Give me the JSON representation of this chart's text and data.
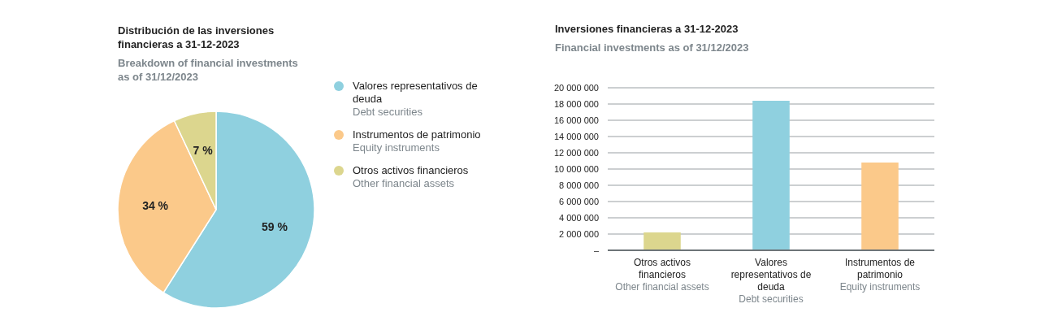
{
  "chart_data": [
    {
      "type": "pie",
      "title": "Distribución de las inversiones financieras a 31-12-2023",
      "subtitle": "Breakdown of financial investments as of 31/12/2023",
      "categories": [
        "Valores representativos de deuda\nDebt securities",
        "Instrumentos de patrimonio\nEquity instruments",
        "Otros activos financieros\nOther financial assets"
      ],
      "values": [
        59,
        34,
        7
      ],
      "colors": [
        "#8fd0df",
        "#fbc98a",
        "#dcd68e"
      ],
      "value_labels": [
        "59 %",
        "34 %",
        "7 %"
      ],
      "legend": "right"
    },
    {
      "type": "bar",
      "title": "Inversiones financieras a 31-12-2023",
      "subtitle": "Financial investments as of 31/12/2023",
      "categories": [
        "Otros activos financieros\nOther financial assets",
        "Valores representativos de deuda\nDebt securities",
        "Instrumentos de patrimonio\nEquity instruments"
      ],
      "values": [
        2200000,
        18400000,
        10800000
      ],
      "colors": [
        "#dcd68e",
        "#8fd0df",
        "#fbc98a"
      ],
      "ylim": [
        0,
        20000000
      ],
      "yticks": [
        {
          "value": 0,
          "label": "–"
        },
        {
          "value": 2000000,
          "label": "2 000 000"
        },
        {
          "value": 4000000,
          "label": "4 000 000"
        },
        {
          "value": 6000000,
          "label": "6 000 000"
        },
        {
          "value": 8000000,
          "label": "8 000 000"
        },
        {
          "value": 10000000,
          "label": "10 000 000"
        },
        {
          "value": 12000000,
          "label": "12 000 000"
        },
        {
          "value": 14000000,
          "label": "14 000 000"
        },
        {
          "value": 16000000,
          "label": "16 000 000"
        },
        {
          "value": 18000000,
          "label": "18 000 000"
        },
        {
          "value": 20000000,
          "label": "20 000 000"
        }
      ],
      "grid": "y"
    }
  ]
}
